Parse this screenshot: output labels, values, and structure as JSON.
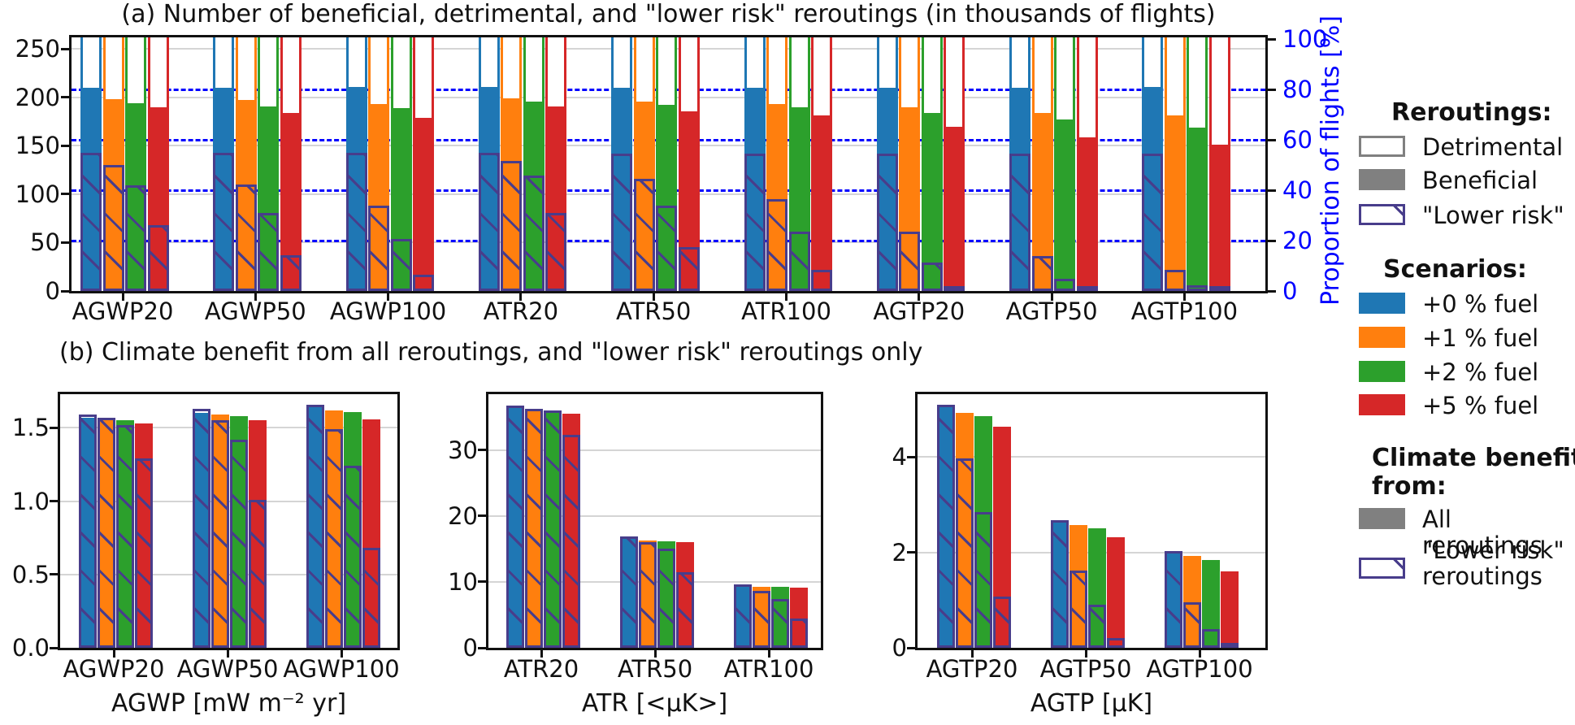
{
  "figure": {
    "panel_a_title": "(a) Number of beneficial, detrimental, and \"lower risk\" reroutings (in thousands of flights)",
    "panel_b_title": "(b) Climate benefit from all reroutings, and \"lower risk\" reroutings only"
  },
  "colors": {
    "scenario_blue": "#1f77b4",
    "scenario_orange": "#ff7f0e",
    "scenario_green": "#2ca02c",
    "scenario_red": "#d62728",
    "hatch_purple": "#483d8b",
    "legend_gray": "#808080",
    "proportion_axis_blue": "#0000ff",
    "gridline_gray": "#d5d5d5"
  },
  "legend": {
    "reroutings_header": "Reroutings:",
    "items_reroutings": [
      "Detrimental",
      "Beneficial",
      "\"Lower risk\""
    ],
    "scenarios_header": "Scenarios:",
    "items_scenarios": [
      "+0 % fuel",
      "+1 % fuel",
      "+2 % fuel",
      "+5 % fuel"
    ],
    "benefit_header": "Climate benefit from:",
    "items_benefit": [
      "All reroutings",
      "\"Lower risk\" reroutings"
    ]
  },
  "chart_data": [
    {
      "id": "a",
      "type": "bar",
      "title": "(a) Number of beneficial, detrimental, and \"lower risk\" reroutings (in thousands of flights)",
      "unit": "thousands of flights",
      "categories": [
        "AGWP20",
        "AGWP50",
        "AGWP100",
        "ATR20",
        "ATR50",
        "ATR100",
        "AGTP20",
        "AGTP50",
        "AGTP100"
      ],
      "scenarios": [
        "+0 % fuel",
        "+1 % fuel",
        "+2 % fuel",
        "+5 % fuel"
      ],
      "ylim": [
        0,
        262
      ],
      "yticks": [
        0,
        50,
        100,
        150,
        200,
        250
      ],
      "ylabel_right": "Proportion of flights [%]",
      "right_ticks_pct": [
        0,
        20,
        40,
        60,
        80,
        100
      ],
      "right_pct_to_left_units": 2.6,
      "dashed_pct_lines": [
        20,
        40,
        60,
        80
      ],
      "grid": true,
      "legend_position": "right",
      "detrimental_note": "detrimental outline bars are clipped at the top axis limit",
      "series": {
        "detrimental": [
          [
            262,
            262,
            262,
            262
          ],
          [
            262,
            262,
            262,
            262
          ],
          [
            262,
            262,
            262,
            262
          ],
          [
            262,
            262,
            262,
            262
          ],
          [
            262,
            262,
            262,
            262
          ],
          [
            262,
            262,
            262,
            262
          ],
          [
            262,
            262,
            262,
            262
          ],
          [
            262,
            262,
            262,
            262
          ],
          [
            262,
            262,
            262,
            262
          ]
        ],
        "beneficial": [
          [
            210,
            198,
            194,
            190
          ],
          [
            210,
            197,
            191,
            184
          ],
          [
            211,
            193,
            189,
            179
          ],
          [
            211,
            199,
            196,
            191
          ],
          [
            210,
            196,
            192,
            186
          ],
          [
            210,
            193,
            190,
            181
          ],
          [
            210,
            190,
            184,
            170
          ],
          [
            210,
            184,
            177,
            159
          ],
          [
            211,
            181,
            169,
            151
          ]
        ],
        "lower_risk": [
          [
            143,
            130,
            109,
            68
          ],
          [
            143,
            110,
            81,
            37
          ],
          [
            143,
            88,
            54,
            17
          ],
          [
            143,
            134,
            119,
            81
          ],
          [
            142,
            116,
            88,
            45
          ],
          [
            142,
            95,
            61,
            22
          ],
          [
            142,
            61,
            29,
            5
          ],
          [
            142,
            36,
            13,
            1
          ],
          [
            142,
            22,
            6,
            2
          ]
        ]
      }
    },
    {
      "id": "b",
      "type": "bar",
      "title": "(b) Climate benefit from all reroutings, and \"lower risk\" reroutings only",
      "subplots": [
        {
          "xlabel": "AGWP [mW m⁻² yr]",
          "categories": [
            "AGWP20",
            "AGWP50",
            "AGWP100"
          ],
          "ylim": [
            0,
            1.73
          ],
          "ytick_labels": [
            "0.0",
            "0.5",
            "1.0",
            "1.5"
          ],
          "yticks": [
            0,
            0.5,
            1.0,
            1.5
          ],
          "series": {
            "all_reroutings": [
              [
                1.57,
                1.56,
                1.55,
                1.53
              ],
              [
                1.6,
                1.59,
                1.58,
                1.55
              ],
              [
                1.64,
                1.62,
                1.61,
                1.56
              ]
            ],
            "lower_risk": [
              [
                1.59,
                1.57,
                1.52,
                1.29
              ],
              [
                1.63,
                1.55,
                1.42,
                1.01
              ],
              [
                1.66,
                1.49,
                1.24,
                0.68
              ]
            ]
          }
        },
        {
          "xlabel": "ATR [<μK>]",
          "categories": [
            "ATR20",
            "ATR50",
            "ATR100"
          ],
          "ylim": [
            0,
            38.5
          ],
          "ytick_labels": [
            "0",
            "10",
            "20",
            "30"
          ],
          "yticks": [
            0,
            10,
            20,
            30
          ],
          "series": {
            "all_reroutings": [
              [
                36.4,
                36.2,
                35.9,
                35.6
              ],
              [
                16.6,
                16.3,
                16.2,
                16.0
              ],
              [
                9.5,
                9.3,
                9.3,
                9.1
              ]
            ],
            "lower_risk": [
              [
                36.8,
                36.3,
                36.0,
                32.3
              ],
              [
                16.9,
                16.1,
                15.1,
                11.5
              ],
              [
                9.6,
                8.6,
                7.4,
                4.4
              ]
            ]
          }
        },
        {
          "xlabel": "AGTP [μK]",
          "categories": [
            "AGTP20",
            "AGTP50",
            "AGTP100"
          ],
          "ylim": [
            0,
            5.32
          ],
          "ytick_labels": [
            "0",
            "2",
            "4"
          ],
          "yticks": [
            0,
            2,
            4
          ],
          "series": {
            "all_reroutings": [
              [
                5.05,
                4.92,
                4.86,
                4.64
              ],
              [
                2.67,
                2.57,
                2.51,
                2.32
              ],
              [
                2.01,
                1.92,
                1.84,
                1.61
              ]
            ],
            "lower_risk": [
              [
                5.1,
                3.97,
                2.84,
                1.08
              ],
              [
                2.68,
                1.62,
                0.91,
                0.21
              ],
              [
                2.03,
                0.95,
                0.39,
                0.06
              ]
            ]
          }
        }
      ]
    }
  ]
}
